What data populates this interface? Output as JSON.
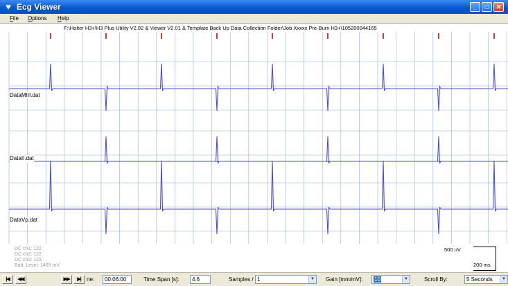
{
  "window": {
    "title": "Ecg Viewer",
    "icon": "heart-icon",
    "controls": [
      "minimize-icon",
      "maximize-icon",
      "close-icon"
    ]
  },
  "menu": {
    "file": {
      "mnemonic": "F",
      "rest": "ile"
    },
    "options": {
      "mnemonic": "O",
      "rest": "ptions"
    },
    "help": {
      "mnemonic": "H",
      "rest": "elp"
    }
  },
  "viewer": {
    "file_path": "F:\\Holter H3+\\H3 Plus Utility V2.02 & Viewer V2.01 & Template Back Up Data Collection Folder\\Job Xxxxx Pre-Burn H3+\\105200044165",
    "channels": [
      {
        "label": "DataMIII.dat"
      },
      {
        "label": "DataII.dat"
      },
      {
        "label": "DataVp.dat"
      }
    ],
    "status": {
      "line1": "DC ch1: 122",
      "line2": "DC ch2: 122",
      "line3": "DC ch3: 123",
      "line4": "Batt. Level: 1469 mV"
    },
    "scale": {
      "amplitude": "500 uV",
      "time": "200 ms"
    },
    "colors": {
      "trace": "#4a4ad6",
      "grid": "#8fb0de",
      "marker": "#cc0000"
    }
  },
  "toolbar": {
    "nav": [
      "first-icon",
      "prev-icon",
      "next-icon",
      "last-icon"
    ],
    "time_label": "ne:",
    "time_value": "00:06:00",
    "span_label": "Time Span [s]:",
    "span_value": "4.6",
    "spp_label": "Samples / Pxl:",
    "spp_value": "1",
    "gain_label": "Gain [mm/mV]:",
    "gain_value": "10",
    "scroll_label": "Scroll By:",
    "scroll_value": "5 Seconds"
  }
}
